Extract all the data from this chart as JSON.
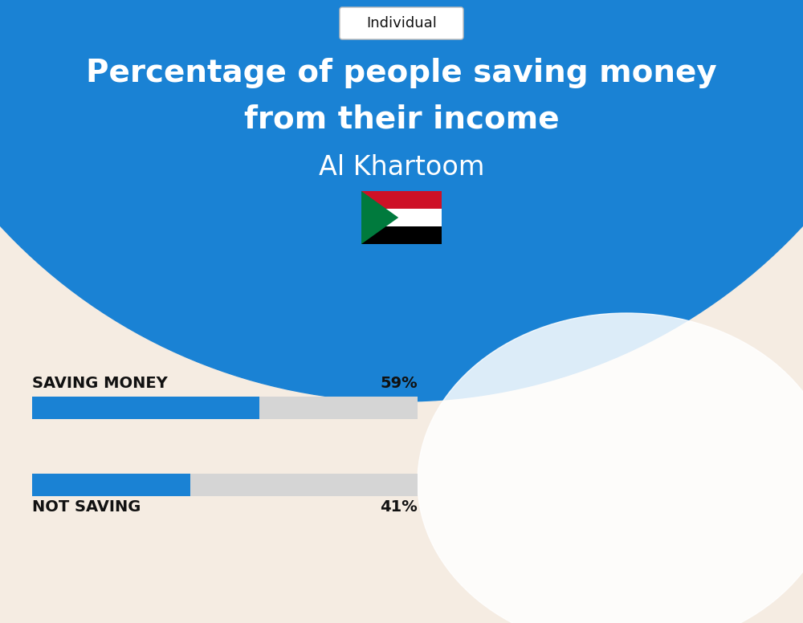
{
  "title_line1": "Percentage of people saving money",
  "title_line2": "from their income",
  "subtitle": "Al Khartoom",
  "tab_label": "Individual",
  "bg_color": "#f5ece2",
  "header_color": "#1a82d4",
  "bar_color": "#1a82d4",
  "bar_bg_color": "#d5d5d5",
  "saving_label": "SAVING MONEY",
  "saving_value": 59,
  "saving_pct_text": "59%",
  "not_saving_label": "NOT SAVING",
  "not_saving_value": 41,
  "not_saving_pct_text": "41%",
  "bar_max": 100,
  "title_color": "#ffffff",
  "label_color": "#111111",
  "pct_color": "#111111",
  "tab_color": "#ffffff",
  "tab_text_color": "#111111",
  "fig_width": 10.0,
  "fig_height": 7.76,
  "dpi": 100
}
